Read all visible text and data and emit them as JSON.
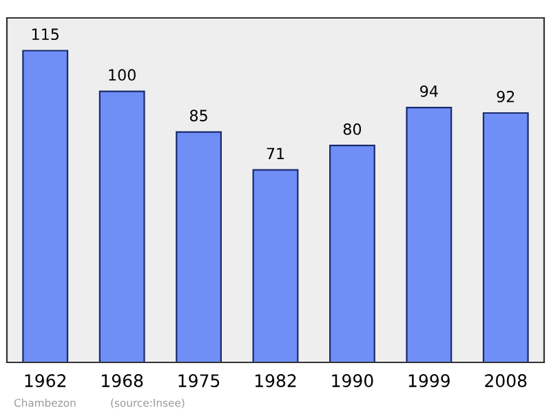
{
  "chart_data": {
    "type": "bar",
    "categories": [
      "1962",
      "1968",
      "1975",
      "1982",
      "1990",
      "1999",
      "2008"
    ],
    "values": [
      115,
      100,
      85,
      71,
      80,
      94,
      92
    ],
    "color": "#6f8ff7",
    "data_labels": true,
    "grid": false,
    "legend": false,
    "tick_labels": "x",
    "annotations": [
      "Chambezon",
      "(source:Insee)"
    ]
  }
}
